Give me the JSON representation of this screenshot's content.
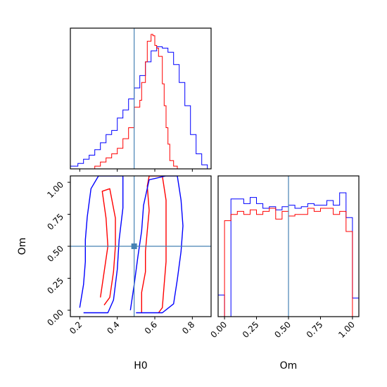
{
  "chart_data": [
    {
      "type": "histogram",
      "panel": "H0 marginal",
      "xlim": [
        0.15,
        0.9
      ],
      "truth_line": 0.49,
      "series": [
        {
          "color": "#0000ff",
          "edges": [
            0.15,
            0.19,
            0.22,
            0.25,
            0.28,
            0.31,
            0.34,
            0.37,
            0.4,
            0.43,
            0.46,
            0.49,
            0.52,
            0.55,
            0.58,
            0.61,
            0.64,
            0.67,
            0.7,
            0.73,
            0.76,
            0.79,
            0.82,
            0.85,
            0.88
          ],
          "values": [
            0.02,
            0.04,
            0.07,
            0.1,
            0.14,
            0.19,
            0.25,
            0.28,
            0.37,
            0.43,
            0.51,
            0.59,
            0.68,
            0.78,
            0.86,
            0.89,
            0.88,
            0.85,
            0.76,
            0.63,
            0.46,
            0.25,
            0.11,
            0.03
          ]
        },
        {
          "color": "#ff0000",
          "edges": [
            0.28,
            0.31,
            0.34,
            0.37,
            0.4,
            0.43,
            0.46,
            0.49,
            0.52,
            0.53,
            0.55,
            0.56,
            0.58,
            0.59,
            0.6,
            0.61,
            0.62,
            0.64,
            0.65,
            0.66,
            0.67,
            0.68,
            0.7,
            0.72
          ],
          "values": [
            0.02,
            0.05,
            0.08,
            0.11,
            0.15,
            0.22,
            0.3,
            0.45,
            0.5,
            0.63,
            0.78,
            0.93,
            0.98,
            0.97,
            0.9,
            0.88,
            0.82,
            0.62,
            0.46,
            0.3,
            0.18,
            0.06,
            0.02
          ]
        }
      ]
    },
    {
      "type": "contour",
      "panel": "H0 vs Om",
      "xlabel": "H0",
      "ylabel": "Om",
      "xlim": [
        0.15,
        0.9
      ],
      "ylim": [
        -0.05,
        1.05
      ],
      "xticks": [
        "0.2",
        "0.4",
        "0.6",
        "0.8"
      ],
      "yticks": [
        "0.00",
        "0.25",
        "0.50",
        "0.75",
        "1.00"
      ],
      "truth": {
        "x": 0.49,
        "y": 0.5
      },
      "series": [
        {
          "color": "#ff0000",
          "level": "inner",
          "contours": [
            [
              [
                0.53,
                -0.02
              ],
              [
                0.53,
                0.14
              ],
              [
                0.55,
                0.3
              ],
              [
                0.55,
                0.46
              ],
              [
                0.56,
                0.62
              ],
              [
                0.57,
                0.78
              ],
              [
                0.56,
                0.97
              ],
              [
                0.57,
                1.05
              ],
              [
                0.64,
                1.05
              ],
              [
                0.66,
                0.86
              ],
              [
                0.66,
                0.7
              ],
              [
                0.66,
                0.52
              ],
              [
                0.66,
                0.38
              ],
              [
                0.65,
                0.2
              ],
              [
                0.64,
                0.02
              ],
              [
                0.62,
                -0.02
              ]
            ],
            [
              [
                0.31,
                0.1
              ],
              [
                0.33,
                0.3
              ],
              [
                0.35,
                0.5
              ],
              [
                0.34,
                0.72
              ],
              [
                0.32,
                0.93
              ],
              [
                0.36,
                0.95
              ],
              [
                0.39,
                0.72
              ],
              [
                0.39,
                0.5
              ],
              [
                0.38,
                0.3
              ],
              [
                0.36,
                0.1
              ],
              [
                0.33,
                0.04
              ]
            ]
          ]
        },
        {
          "color": "#0000ff",
          "level": "inner",
          "contours": [
            [
              [
                0.2,
                0.02
              ],
              [
                0.22,
                0.2
              ],
              [
                0.23,
                0.38
              ],
              [
                0.23,
                0.55
              ],
              [
                0.24,
                0.73
              ],
              [
                0.26,
                0.95
              ],
              [
                0.3,
                1.05
              ],
              [
                0.43,
                1.05
              ],
              [
                0.43,
                0.8
              ],
              [
                0.41,
                0.55
              ],
              [
                0.4,
                0.32
              ],
              [
                0.38,
                0.08
              ],
              [
                0.35,
                -0.02
              ],
              [
                0.22,
                -0.02
              ]
            ],
            [
              [
                0.47,
                0.0
              ],
              [
                0.49,
                0.2
              ],
              [
                0.51,
                0.42
              ],
              [
                0.53,
                0.62
              ],
              [
                0.54,
                0.82
              ],
              [
                0.57,
                1.02
              ],
              [
                0.66,
                1.05
              ],
              [
                0.72,
                1.05
              ],
              [
                0.74,
                0.86
              ],
              [
                0.75,
                0.66
              ],
              [
                0.74,
                0.46
              ],
              [
                0.72,
                0.24
              ],
              [
                0.7,
                0.05
              ],
              [
                0.64,
                -0.02
              ],
              [
                0.5,
                -0.02
              ]
            ]
          ]
        }
      ]
    },
    {
      "type": "histogram",
      "panel": "Om marginal",
      "xlabel": "Om",
      "xlim": [
        -0.05,
        1.05
      ],
      "xticks": [
        "0.00",
        "0.25",
        "0.50",
        "0.75",
        "1.00"
      ],
      "truth_line": 0.5,
      "series": [
        {
          "color": "#0000ff",
          "edges": [
            -0.05,
            0.0,
            0.05,
            0.1,
            0.15,
            0.2,
            0.25,
            0.3,
            0.35,
            0.4,
            0.45,
            0.5,
            0.55,
            0.6,
            0.65,
            0.7,
            0.75,
            0.8,
            0.85,
            0.9,
            0.95,
            1.0,
            1.05
          ],
          "values": [
            0.14,
            0.0,
            0.76,
            0.76,
            0.73,
            0.77,
            0.73,
            0.7,
            0.71,
            0.69,
            0.71,
            0.72,
            0.7,
            0.71,
            0.73,
            0.72,
            0.72,
            0.75,
            0.72,
            0.8,
            0.64,
            0.12
          ]
        },
        {
          "color": "#ff0000",
          "edges": [
            0.0,
            0.05,
            0.1,
            0.15,
            0.2,
            0.25,
            0.3,
            0.35,
            0.4,
            0.45,
            0.5,
            0.55,
            0.6,
            0.65,
            0.7,
            0.75,
            0.8,
            0.85,
            0.9,
            0.95,
            1.0
          ],
          "values": [
            0.62,
            0.66,
            0.68,
            0.66,
            0.69,
            0.66,
            0.68,
            0.7,
            0.63,
            0.68,
            0.65,
            0.66,
            0.66,
            0.7,
            0.68,
            0.7,
            0.7,
            0.66,
            0.68,
            0.55
          ]
        }
      ]
    }
  ],
  "style": {
    "truth_color": "#4682b4"
  }
}
